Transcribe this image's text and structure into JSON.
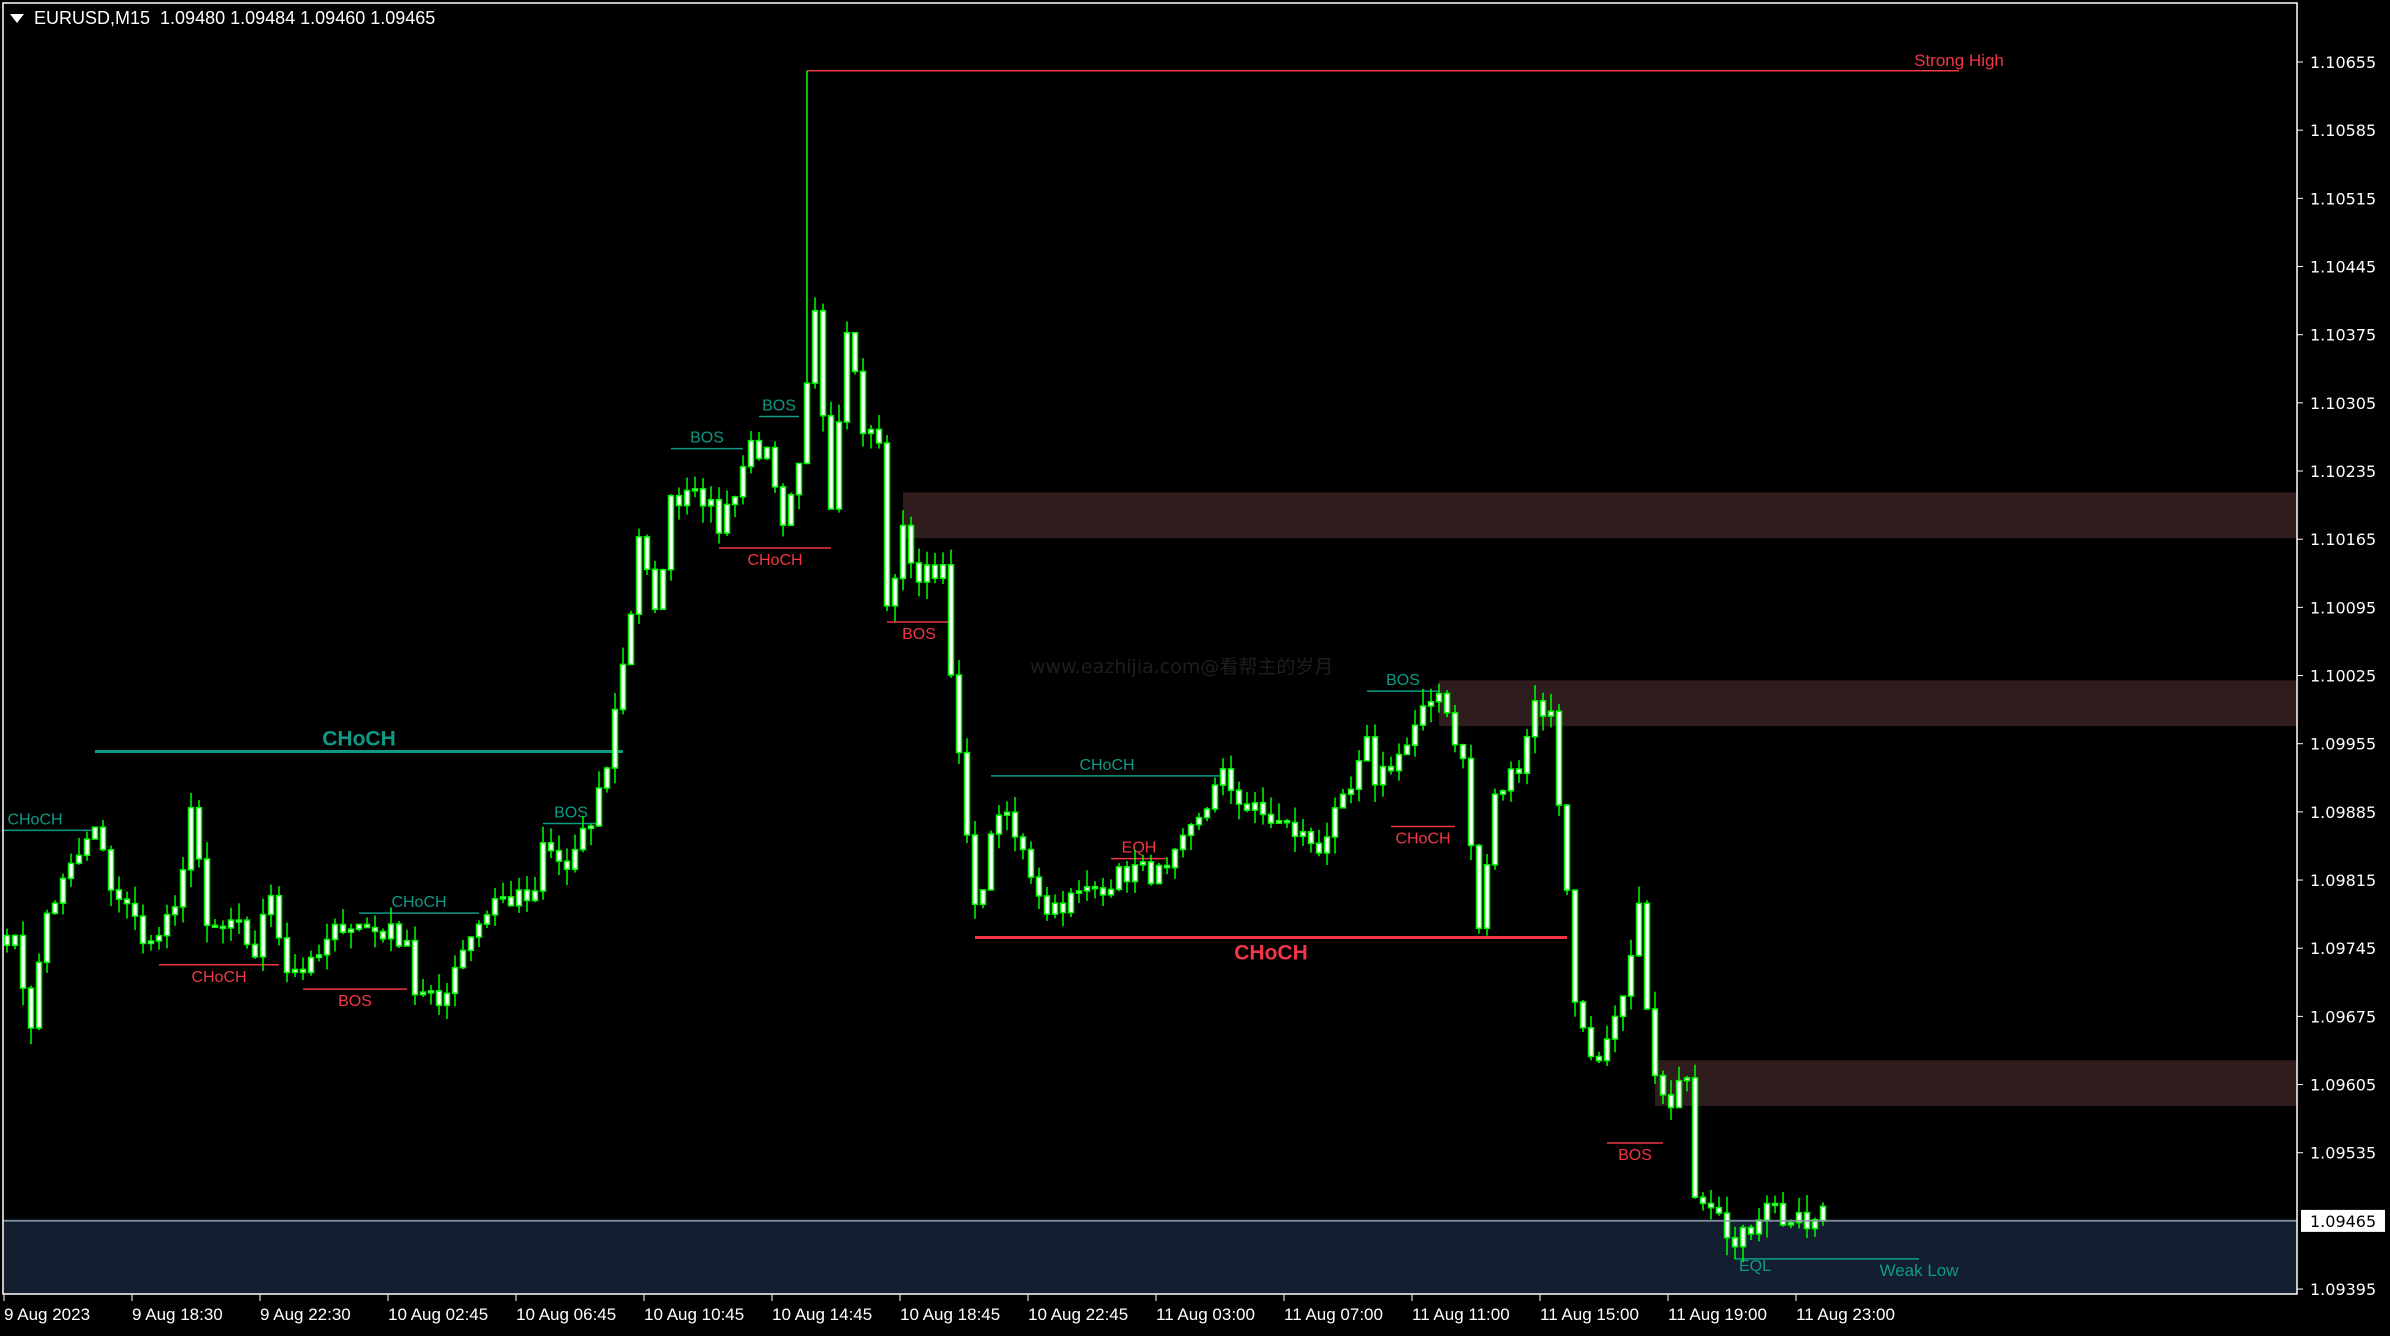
{
  "header": {
    "symbol": "EURUSD,M15",
    "prices": "1.09480 1.09484 1.09460 1.09465",
    "menu_icon": "triangle-down-icon"
  },
  "watermark": "www.eazhijia.com@看帮主的岁月",
  "colors": {
    "background": "#000000",
    "candle_outline": "#00ff00",
    "candle_body": "#ffffff",
    "bull_structure": "#0f9a86",
    "bear_structure": "#f23645",
    "zone": "#2f1c1c",
    "discount_zone": "#131f30",
    "price_line": "#8d9aa8"
  },
  "price_axis": {
    "labels": [
      "1.10655",
      "1.10585",
      "1.10515",
      "1.10445",
      "1.10375",
      "1.10305",
      "1.10235",
      "1.10165",
      "1.10095",
      "1.10025",
      "1.09955",
      "1.09885",
      "1.09815",
      "1.09745",
      "1.09675",
      "1.09605",
      "1.09535",
      "1.09395"
    ],
    "current_price": "1.09465"
  },
  "time_axis": {
    "labels": [
      "9 Aug 2023",
      "9 Aug 18:30",
      "9 Aug 22:30",
      "10 Aug 02:45",
      "10 Aug 06:45",
      "10 Aug 10:45",
      "10 Aug 14:45",
      "10 Aug 18:45",
      "10 Aug 22:45",
      "11 Aug 03:00",
      "11 Aug 07:00",
      "11 Aug 11:00",
      "11 Aug 15:00",
      "11 Aug 19:00",
      "11 Aug 23:00"
    ]
  },
  "chart_data": {
    "type": "candlestick",
    "symbol": "EURUSD",
    "timeframe": "M15",
    "ylim": [
      1.0938,
      1.107
    ],
    "approx_close_path": [
      [
        "08-09 14:30",
        1.0976
      ],
      [
        "08-09 14:45",
        1.09748
      ],
      [
        "08-09 15:15",
        1.0967
      ],
      [
        "08-09 15:45",
        1.0978
      ],
      [
        "08-09 16:30",
        1.09826
      ],
      [
        "08-09 17:15",
        1.09866
      ],
      [
        "08-09 17:45",
        1.09811
      ],
      [
        "08-09 19:00",
        1.09748
      ],
      [
        "08-09 19:45",
        1.0978
      ],
      [
        "08-09 20:15",
        1.09889
      ],
      [
        "08-09 20:45",
        1.09764
      ],
      [
        "08-09 21:45",
        1.09764
      ],
      [
        "08-09 22:15",
        1.0974
      ],
      [
        "08-09 22:45",
        1.09803
      ],
      [
        "08-09 23:15",
        1.09725
      ],
      [
        "08-10 00:00",
        1.09725
      ],
      [
        "08-10 01:00",
        1.09772
      ],
      [
        "08-10 02:00",
        1.09764
      ],
      [
        "08-10 03:00",
        1.09756
      ],
      [
        "08-10 03:15",
        1.09701
      ],
      [
        "08-10 04:00",
        1.09686
      ],
      [
        "08-10 04:45",
        1.09748
      ],
      [
        "08-10 05:45",
        1.09795
      ],
      [
        "08-10 07:00",
        1.09795
      ],
      [
        "08-10 07:15",
        1.0985
      ],
      [
        "08-10 08:00",
        1.09826
      ],
      [
        "08-10 08:45",
        1.09873
      ],
      [
        "08-10 09:15",
        1.09936
      ],
      [
        "08-10 10:00",
        1.10092
      ],
      [
        "08-10 10:15",
        1.1017
      ],
      [
        "08-10 10:45",
        1.10084
      ],
      [
        "08-10 11:15",
        1.10202
      ],
      [
        "08-10 12:00",
        1.10225
      ],
      [
        "08-10 12:45",
        1.10178
      ],
      [
        "08-10 13:15",
        1.10217
      ],
      [
        "08-10 13:45",
        1.10264
      ],
      [
        "08-10 14:15",
        1.10249
      ],
      [
        "08-10 14:45",
        1.1017
      ],
      [
        "08-10 15:15",
        1.10233
      ],
      [
        "08-10 15:45",
        1.10405
      ],
      [
        "08-10 16:15",
        1.10202
      ],
      [
        "08-10 16:45",
        1.10389
      ],
      [
        "08-10 17:15",
        1.1028
      ],
      [
        "08-10 17:45",
        1.10264
      ],
      [
        "08-10 18:00",
        1.10092
      ],
      [
        "08-10 18:30",
        1.1017
      ],
      [
        "08-10 19:00",
        1.10124
      ],
      [
        "08-10 19:45",
        1.10139
      ],
      [
        "08-10 20:15",
        1.09936
      ],
      [
        "08-10 20:45",
        1.0978
      ],
      [
        "08-10 21:30",
        1.09889
      ],
      [
        "08-10 22:15",
        1.09842
      ],
      [
        "08-10 23:00",
        1.09787
      ],
      [
        "08-10 23:45",
        1.09795
      ],
      [
        "08-11 00:45",
        1.09811
      ],
      [
        "08-11 01:45",
        1.09826
      ],
      [
        "08-11 02:45",
        1.09819
      ],
      [
        "08-11 03:45",
        1.09881
      ],
      [
        "08-11 04:30",
        1.0992
      ],
      [
        "08-11 05:15",
        1.09889
      ],
      [
        "08-11 06:15",
        1.09873
      ],
      [
        "08-11 07:30",
        1.0985
      ],
      [
        "08-11 08:30",
        1.09905
      ],
      [
        "08-11 09:00",
        1.09952
      ],
      [
        "08-11 09:15",
        1.0992
      ],
      [
        "08-11 10:15",
        1.09952
      ],
      [
        "08-11 11:15",
        1.10014
      ],
      [
        "08-11 12:00",
        1.09936
      ],
      [
        "08-11 12:30",
        1.09764
      ],
      [
        "08-11 13:00",
        1.09897
      ],
      [
        "08-11 13:45",
        1.09936
      ],
      [
        "08-11 14:15",
        1.09998
      ],
      [
        "08-11 14:45",
        1.09983
      ],
      [
        "08-11 15:15",
        1.09811
      ],
      [
        "08-11 15:30",
        1.09686
      ],
      [
        "08-11 16:15",
        1.09623
      ],
      [
        "08-11 17:00",
        1.09686
      ],
      [
        "08-11 17:30",
        1.0978
      ],
      [
        "08-11 18:00",
        1.09608
      ],
      [
        "08-11 18:30",
        1.09576
      ],
      [
        "08-11 19:00",
        1.09623
      ],
      [
        "08-11 19:15",
        1.09498
      ],
      [
        "08-11 20:00",
        1.09483
      ],
      [
        "08-11 20:30",
        1.09436
      ],
      [
        "08-11 21:00",
        1.09459
      ],
      [
        "08-11 21:30",
        1.0949
      ],
      [
        "08-11 22:00",
        1.09467
      ],
      [
        "08-11 22:45",
        1.09459
      ],
      [
        "08-11 23:15",
        1.09465
      ]
    ],
    "spike_high": {
      "time": "08-10 15:30",
      "price": 1.10646
    },
    "last_candle": {
      "open": 1.0948,
      "high": 1.09484,
      "low": 1.0946,
      "close": 1.09465
    }
  },
  "zones": [
    {
      "name": "supply-zone-1",
      "from": "08-10 18:30",
      "top": 1.10213,
      "bottom": 1.10166
    },
    {
      "name": "supply-zone-2",
      "from": "08-11 11:15",
      "top": 1.1002,
      "bottom": 1.09973
    },
    {
      "name": "supply-zone-3",
      "from": "08-11 18:00",
      "top": 1.0963,
      "bottom": 1.09583
    },
    {
      "name": "discount-zone",
      "from": "08-09 14:00",
      "top": 1.09467,
      "bottom": 1.0938,
      "kind": "discount"
    }
  ],
  "structures": [
    {
      "label": "CHoCH",
      "trend": "bull",
      "major": true,
      "from": "08-09 17:15",
      "to": "08-10 09:45",
      "price": 1.09947
    },
    {
      "label": "CHoCH",
      "trend": "bull",
      "from": "08-09 13:30",
      "to": "08-09 17:15",
      "price": 1.09866
    },
    {
      "label": "CHoCH",
      "trend": "bear",
      "from": "08-09 19:15",
      "to": "08-09 23:00",
      "price": 1.09728
    },
    {
      "label": "BOS",
      "trend": "bear",
      "from": "08-09 23:45",
      "to": "08-10 03:00",
      "price": 1.09703
    },
    {
      "label": "CHoCH",
      "trend": "bull",
      "from": "08-10 01:30",
      "to": "08-10 05:15",
      "price": 1.09781
    },
    {
      "label": "BOS",
      "trend": "bull",
      "from": "08-10 07:15",
      "to": "08-10 09:00",
      "price": 1.09873
    },
    {
      "label": "BOS",
      "trend": "bull",
      "from": "08-10 11:15",
      "to": "08-10 13:30",
      "price": 1.10258
    },
    {
      "label": "BOS",
      "trend": "bull",
      "from": "08-10 14:00",
      "to": "08-10 15:15",
      "price": 1.10291
    },
    {
      "label": "CHoCH",
      "trend": "bear",
      "from": "08-10 12:45",
      "to": "08-10 16:15",
      "price": 1.10156
    },
    {
      "label": "BOS",
      "trend": "bear",
      "from": "08-10 18:00",
      "to": "08-10 20:00",
      "price": 1.1008
    },
    {
      "label": "CHoCH",
      "trend": "bull",
      "from": "08-10 21:15",
      "to": "08-11 04:30",
      "price": 1.09922
    },
    {
      "label": "EQH",
      "trend": "bear",
      "from": "08-11 01:00",
      "to": "08-11 02:45",
      "price": 1.09837,
      "above": true
    },
    {
      "label": "CHoCH",
      "trend": "bear",
      "major": true,
      "from": "08-10 20:45",
      "to": "08-11 15:15",
      "price": 1.09756
    },
    {
      "label": "BOS",
      "trend": "bull",
      "from": "08-11 09:00",
      "to": "08-11 11:15",
      "price": 1.10009
    },
    {
      "label": "CHoCH",
      "trend": "bear",
      "from": "08-11 09:45",
      "to": "08-11 11:45",
      "price": 1.0987
    },
    {
      "label": "BOS",
      "trend": "bear",
      "from": "08-11 16:30",
      "to": "08-11 18:15",
      "price": 1.09545
    }
  ],
  "levels": [
    {
      "label": "Strong High",
      "trend": "bear",
      "from": "08-10 15:30",
      "to": "08-12 03:30",
      "price": 1.10646
    },
    {
      "label": "Weak Low",
      "trend": "bull",
      "from": "08-11 20:30",
      "to": "08-12 02:15",
      "price": 1.09426,
      "sub_label": "EQL"
    }
  ]
}
